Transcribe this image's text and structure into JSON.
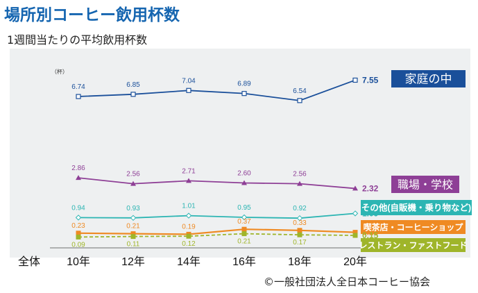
{
  "title": "場所別コーヒー飲用杯数",
  "subtitle": "1週間当たりの平均飲用杯数",
  "credit": "©一般社団法人全日本コーヒー協会",
  "chart_data": {
    "type": "line",
    "unit_label": "（杯）",
    "category_prefix": "全体",
    "categories": [
      "10年",
      "12年",
      "14年",
      "16年",
      "18年",
      "20年"
    ],
    "series": [
      {
        "name": "家庭の中",
        "values": [
          6.74,
          6.85,
          7.04,
          6.89,
          6.54,
          7.55
        ],
        "color": "#1a4f9a",
        "label_bg": "#1a4f9a",
        "label_fg": "#ffffff",
        "marker": "open-square",
        "dashed": false
      },
      {
        "name": "職場・学校",
        "values": [
          2.86,
          2.56,
          2.71,
          2.6,
          2.56,
          2.32
        ],
        "color": "#8e3f96",
        "label_bg": "#8e3f96",
        "label_fg": "#ffffff",
        "marker": "triangle",
        "dashed": false
      },
      {
        "name": "その他(自販機・乗り物など)",
        "values": [
          0.94,
          0.93,
          1.01,
          0.95,
          0.92,
          1.09
        ],
        "color": "#2cb5b3",
        "label_bg": "#2cb5b3",
        "label_fg": "#ffffff",
        "marker": "open-diamond",
        "dashed": false
      },
      {
        "name": "喫茶店・コーヒーショップ",
        "values": [
          0.23,
          0.21,
          0.19,
          0.37,
          0.33,
          0.26
        ],
        "color": "#ef8a23",
        "label_bg": "#ef8a23",
        "label_fg": "#ffffff",
        "marker": "square",
        "dashed": false
      },
      {
        "name": "レストラン・ファストフード",
        "values": [
          0.09,
          0.11,
          0.12,
          0.21,
          0.17,
          0.15
        ],
        "color": "#9fb52a",
        "label_bg": "#9fb52a",
        "label_fg": "#ffffff",
        "marker": "square",
        "dashed": true
      }
    ],
    "grid": false,
    "legend": "right-inline"
  }
}
